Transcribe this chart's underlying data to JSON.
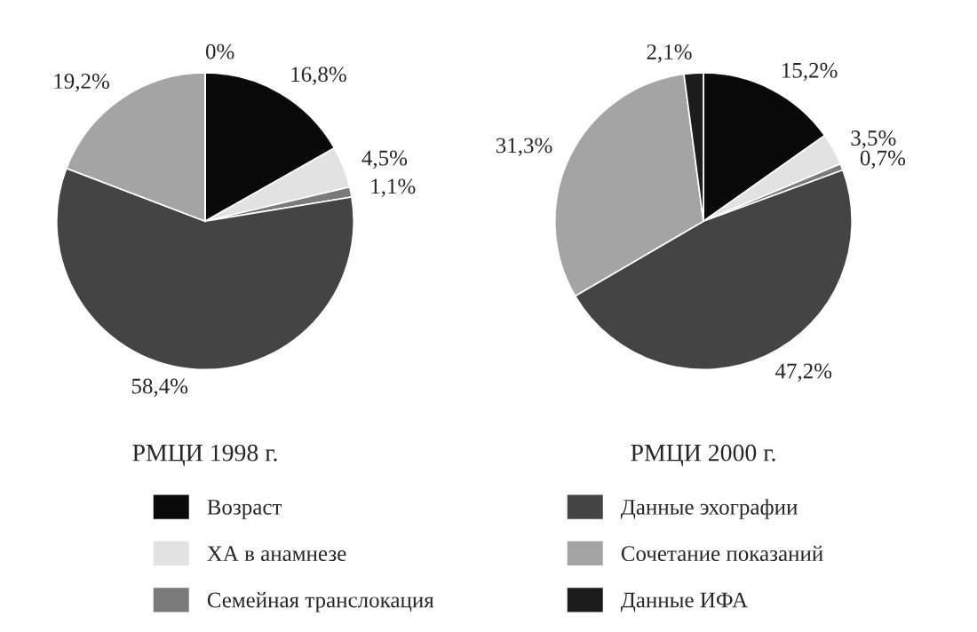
{
  "chart_data": [
    {
      "type": "pie",
      "title": "РМЦИ 1998 г.",
      "categories": [
        "Возраст",
        "ХА в анамнезе",
        "Семейная транслокация",
        "Данные эхографии",
        "Сочетание показаний",
        "Данные ИФА"
      ],
      "values": [
        16.8,
        4.5,
        1.1,
        58.4,
        19.2,
        0
      ],
      "value_labels": [
        "16,8%",
        "4,5%",
        "1,1%",
        "58,4%",
        "19,2%",
        "0%"
      ],
      "colors": [
        "#0a0a0a",
        "#e2e2e2",
        "#7a7a7a",
        "#444444",
        "#a4a4a4",
        "#1c1c1c"
      ],
      "legend": "bottom"
    },
    {
      "type": "pie",
      "title": "РМЦИ 2000 г.",
      "values": [
        15.2,
        3.5,
        0.7,
        47.2,
        31.3,
        2.1
      ],
      "value_labels": [
        "15,2%",
        "3,5%",
        "0,7%",
        "47,2%",
        "31,3%",
        "2,1%"
      ],
      "colors": [
        "#0a0a0a",
        "#e2e2e2",
        "#7a7a7a",
        "#444444",
        "#a4a4a4",
        "#1c1c1c"
      ]
    }
  ]
}
